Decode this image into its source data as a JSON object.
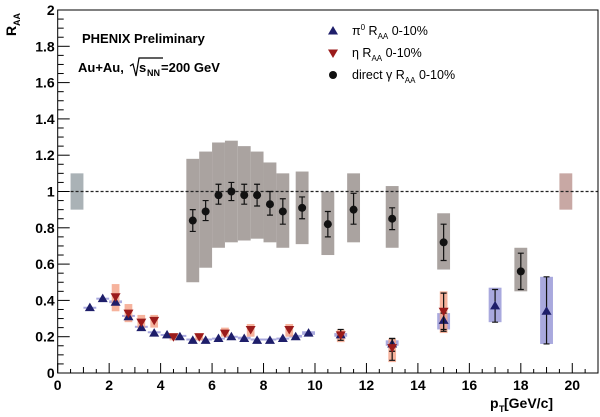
{
  "chart_data": {
    "type": "scatter",
    "xlabel": "p",
    "xlabel_sub": "T",
    "xlabel_unit": " [GeV/c]",
    "ylabel": "R",
    "ylabel_sub": "AA",
    "xlim": [
      0,
      21
    ],
    "ylim": [
      0,
      2
    ],
    "xticks": [
      0,
      2,
      4,
      6,
      8,
      10,
      12,
      14,
      16,
      18,
      20
    ],
    "yticks": [
      0,
      0.2,
      0.4,
      0.6,
      0.8,
      1,
      1.2,
      1.4,
      1.6,
      1.8,
      2
    ],
    "ytick_labels": [
      "0",
      "0.2",
      "0.4",
      "0.6",
      "0.8",
      "1",
      "1.2",
      "1.4",
      "1.6",
      "1.8",
      "2"
    ],
    "reference_line": 1,
    "annotations": {
      "title": "PHENIX Preliminary",
      "system": "Au+Au,",
      "sqrt_s": "s",
      "sqrt_s_sub": "NN",
      "energy": "=200 GeV"
    },
    "normalization_boxes": [
      {
        "x": [
          0.5,
          1.0
        ],
        "y": [
          0.9,
          1.1
        ],
        "color": "#aab2b6"
      },
      {
        "x": [
          19.5,
          20.0
        ],
        "y": [
          0.9,
          1.1
        ],
        "color": "#c8a8a4"
      }
    ],
    "series": [
      {
        "name": "π0 RAA 0-10%",
        "legend": {
          "pre": "π",
          "sup": "0",
          "mid": " R",
          "sub": "AA",
          "post": " 0-10%"
        },
        "marker": "triangle-up",
        "color": "#1e1e6a",
        "sys_color": "#9a9ad8",
        "points": [
          {
            "x": 1.25,
            "y": 0.36,
            "sys": [
              0.355,
              0.365
            ],
            "sw": 0.25
          },
          {
            "x": 1.75,
            "y": 0.41,
            "sys": [
              0.405,
              0.415
            ],
            "sw": 0.25
          },
          {
            "x": 2.25,
            "y": 0.39,
            "sys": [
              0.385,
              0.4
            ],
            "sw": 0.25
          },
          {
            "x": 2.75,
            "y": 0.31,
            "sys": [
              0.31,
              0.32
            ],
            "sw": 0.25
          },
          {
            "x": 3.25,
            "y": 0.25,
            "sys": [
              0.25,
              0.26
            ],
            "sw": 0.25
          },
          {
            "x": 3.75,
            "y": 0.22,
            "sys": [
              0.22,
              0.23
            ],
            "sw": 0.25
          },
          {
            "x": 4.25,
            "y": 0.21,
            "sys": [
              0.205,
              0.215
            ],
            "sw": 0.25
          },
          {
            "x": 4.75,
            "y": 0.2,
            "sys": [
              0.2,
              0.21
            ],
            "sw": 0.25
          },
          {
            "x": 5.25,
            "y": 0.18,
            "sys": [
              0.18,
              0.19
            ],
            "sw": 0.25
          },
          {
            "x": 5.75,
            "y": 0.18,
            "sys": [
              0.18,
              0.19
            ],
            "sw": 0.25
          },
          {
            "x": 6.25,
            "y": 0.19,
            "sys": [
              0.185,
              0.195
            ],
            "sw": 0.25
          },
          {
            "x": 6.75,
            "y": 0.2,
            "sys": [
              0.195,
              0.205
            ],
            "sw": 0.25
          },
          {
            "x": 7.25,
            "y": 0.19,
            "sys": [
              0.185,
              0.2
            ],
            "sw": 0.25
          },
          {
            "x": 7.75,
            "y": 0.18,
            "sys": [
              0.18,
              0.19
            ],
            "sw": 0.25
          },
          {
            "x": 8.25,
            "y": 0.18,
            "sys": [
              0.18,
              0.19
            ],
            "sw": 0.25
          },
          {
            "x": 8.75,
            "y": 0.19,
            "sys": [
              0.185,
              0.195
            ],
            "sw": 0.25
          },
          {
            "x": 9.25,
            "y": 0.2,
            "sys": [
              0.195,
              0.21
            ],
            "sw": 0.25
          },
          {
            "x": 9.75,
            "y": 0.22,
            "sys": [
              0.21,
              0.23
            ],
            "sw": 0.25
          },
          {
            "x": 11,
            "y": 0.21,
            "sys": [
              0.2,
              0.22
            ],
            "sw": 0.25
          },
          {
            "x": 13,
            "y": 0.16,
            "sys": [
              0.15,
              0.18
            ],
            "sw": 0.25,
            "err": [
              0.12,
              0.19
            ]
          },
          {
            "x": 15,
            "y": 0.29,
            "sys": [
              0.24,
              0.33
            ],
            "sw": 0.25,
            "err": [
              0.24,
              0.33
            ]
          },
          {
            "x": 17,
            "y": 0.37,
            "sys": [
              0.28,
              0.47
            ],
            "sw": 0.25,
            "err": [
              0.28,
              0.46
            ]
          },
          {
            "x": 19,
            "y": 0.34,
            "sys": [
              0.16,
              0.53
            ],
            "sw": 0.25,
            "err": [
              0.16,
              0.53
            ]
          }
        ]
      },
      {
        "name": "η RAA 0-10%",
        "legend": {
          "pre": "η",
          "sup": "",
          "mid": " R",
          "sub": "AA",
          "post": " 0-10%"
        },
        "marker": "triangle-down",
        "color": "#9b1b1b",
        "sys_color": "#f4a68c",
        "points": [
          {
            "x": 2.25,
            "y": 0.42,
            "sys": [
              0.34,
              0.49
            ],
            "sw": 0.15
          },
          {
            "x": 2.75,
            "y": 0.33,
            "sys": [
              0.28,
              0.38
            ],
            "sw": 0.15
          },
          {
            "x": 3.25,
            "y": 0.28,
            "sys": [
              0.25,
              0.32
            ],
            "sw": 0.15
          },
          {
            "x": 3.75,
            "y": 0.29,
            "sys": [
              0.25,
              0.32
            ],
            "sw": 0.15
          },
          {
            "x": 4.5,
            "y": 0.2,
            "sys": [
              0.18,
              0.22
            ],
            "sw": 0.15
          },
          {
            "x": 5.5,
            "y": 0.2,
            "sys": [
              0.18,
              0.22
            ],
            "sw": 0.15
          },
          {
            "x": 6.5,
            "y": 0.22,
            "sys": [
              0.2,
              0.25
            ],
            "sw": 0.15
          },
          {
            "x": 7.5,
            "y": 0.24,
            "sys": [
              0.2,
              0.27
            ],
            "sw": 0.15
          },
          {
            "x": 9,
            "y": 0.24,
            "sys": [
              0.2,
              0.27
            ],
            "sw": 0.15
          },
          {
            "x": 11,
            "y": 0.21,
            "sys": [
              0.17,
              0.24
            ],
            "sw": 0.15,
            "err": [
              0.18,
              0.24
            ]
          },
          {
            "x": 13,
            "y": 0.14,
            "sys": [
              0.06,
              0.19
            ],
            "sw": 0.15,
            "err": [
              0.07,
              0.19
            ]
          },
          {
            "x": 15,
            "y": 0.34,
            "sys": [
              0.22,
              0.45
            ],
            "sw": 0.15,
            "err": [
              0.23,
              0.44
            ]
          }
        ]
      },
      {
        "name": "direct γ RAA 0-10%",
        "legend": {
          "pre": "direct γ",
          "sup": "",
          "mid": " R",
          "sub": "AA",
          "post": " 0-10%"
        },
        "marker": "circle",
        "color": "#111111",
        "sys_color": "#aaa3a0",
        "points": [
          {
            "x": 5.25,
            "y": 0.84,
            "err": [
              0.78,
              0.9
            ],
            "sys": [
              0.5,
              1.18
            ],
            "sw": 0.25
          },
          {
            "x": 5.75,
            "y": 0.89,
            "err": [
              0.84,
              0.95
            ],
            "sys": [
              0.58,
              1.22
            ],
            "sw": 0.25
          },
          {
            "x": 6.25,
            "y": 0.98,
            "err": [
              0.93,
              1.04
            ],
            "sys": [
              0.69,
              1.27
            ],
            "sw": 0.25
          },
          {
            "x": 6.75,
            "y": 1.0,
            "err": [
              0.95,
              1.05
            ],
            "sys": [
              0.72,
              1.28
            ],
            "sw": 0.25
          },
          {
            "x": 7.25,
            "y": 0.98,
            "err": [
              0.93,
              1.04
            ],
            "sys": [
              0.73,
              1.25
            ],
            "sw": 0.25
          },
          {
            "x": 7.75,
            "y": 0.98,
            "err": [
              0.92,
              1.04
            ],
            "sys": [
              0.74,
              1.22
            ],
            "sw": 0.25
          },
          {
            "x": 8.25,
            "y": 0.93,
            "err": [
              0.87,
              1.0
            ],
            "sys": [
              0.72,
              1.16
            ],
            "sw": 0.25
          },
          {
            "x": 8.75,
            "y": 0.89,
            "err": [
              0.82,
              0.96
            ],
            "sys": [
              0.69,
              1.1
            ],
            "sw": 0.25
          },
          {
            "x": 9.5,
            "y": 0.91,
            "err": [
              0.85,
              0.97
            ],
            "sys": [
              0.71,
              1.11
            ],
            "sw": 0.25
          },
          {
            "x": 10.5,
            "y": 0.82,
            "err": [
              0.75,
              0.89
            ],
            "sys": [
              0.65,
              1.0
            ],
            "sw": 0.25
          },
          {
            "x": 11.5,
            "y": 0.9,
            "err": [
              0.82,
              0.99
            ],
            "sys": [
              0.72,
              1.1
            ],
            "sw": 0.25
          },
          {
            "x": 13,
            "y": 0.85,
            "err": [
              0.79,
              0.91
            ],
            "sys": [
              0.69,
              1.03
            ],
            "sw": 0.25
          },
          {
            "x": 15,
            "y": 0.72,
            "err": [
              0.62,
              0.82
            ],
            "sys": [
              0.57,
              0.88
            ],
            "sw": 0.25
          },
          {
            "x": 18,
            "y": 0.56,
            "err": [
              0.46,
              0.66
            ],
            "sys": [
              0.45,
              0.69
            ],
            "sw": 0.25
          }
        ]
      }
    ],
    "legend_placement": "top-center",
    "grid": false
  }
}
